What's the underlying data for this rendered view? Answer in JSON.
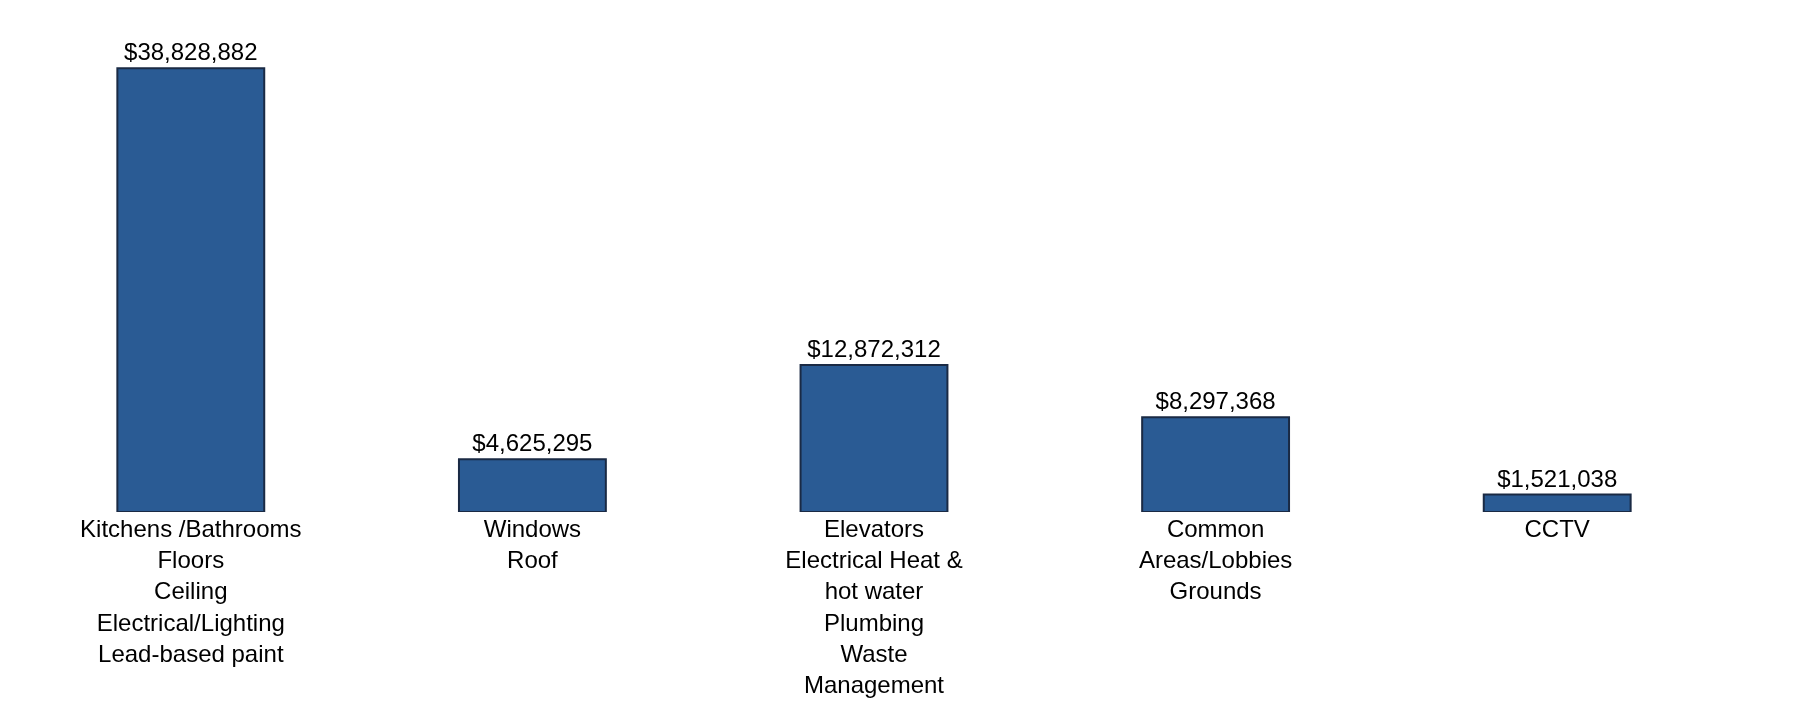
{
  "chart_data": {
    "type": "bar",
    "categories": [
      "Kitchens /Bathrooms\nFloors\nCeiling\nElectrical/Lighting\nLead-based paint",
      "Windows\nRoof",
      "Elevators\nElectrical Heat &\nhot water\nPlumbing\nWaste\nManagement",
      "Common\nAreas/Lobbies\nGrounds",
      "CCTV"
    ],
    "values": [
      38828882,
      4625295,
      12872312,
      8297368,
      1521038
    ],
    "value_labels": [
      "$38,828,882",
      "$4,625,295",
      "$12,872,312",
      "$8,297,368",
      "$1,521,038"
    ],
    "color": "#2a5b94"
  }
}
